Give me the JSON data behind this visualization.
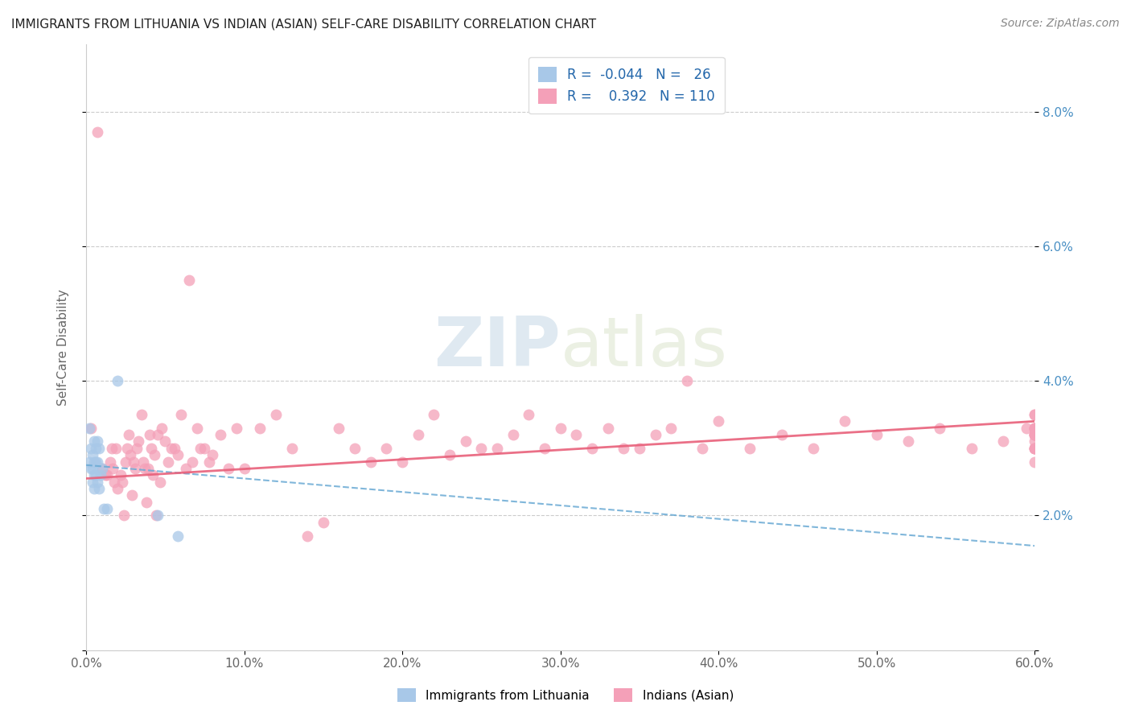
{
  "title": "IMMIGRANTS FROM LITHUANIA VS INDIAN (ASIAN) SELF-CARE DISABILITY CORRELATION CHART",
  "source": "Source: ZipAtlas.com",
  "ylabel": "Self-Care Disability",
  "x_min": 0.0,
  "x_max": 0.6,
  "y_min": 0.0,
  "y_max": 0.09,
  "x_ticks": [
    0.0,
    0.1,
    0.2,
    0.3,
    0.4,
    0.5,
    0.6
  ],
  "x_tick_labels": [
    "0.0%",
    "10.0%",
    "20.0%",
    "30.0%",
    "40.0%",
    "50.0%",
    "60.0%"
  ],
  "y_ticks": [
    0.0,
    0.02,
    0.04,
    0.06,
    0.08
  ],
  "y_tick_labels": [
    "",
    "2.0%",
    "4.0%",
    "6.0%",
    "8.0%"
  ],
  "color_blue": "#a8c8e8",
  "color_pink": "#f4a0b8",
  "color_blue_line": "#6aaad4",
  "color_pink_line": "#e8607a",
  "watermark_zip": "ZIP",
  "watermark_atlas": "atlas",
  "label1": "Immigrants from Lithuania",
  "label2": "Indians (Asian)",
  "lithuania_x": [
    0.002,
    0.002,
    0.003,
    0.003,
    0.004,
    0.004,
    0.004,
    0.005,
    0.005,
    0.005,
    0.005,
    0.006,
    0.006,
    0.006,
    0.007,
    0.007,
    0.007,
    0.008,
    0.008,
    0.009,
    0.01,
    0.011,
    0.013,
    0.02,
    0.045,
    0.058
  ],
  "lithuania_y": [
    0.028,
    0.033,
    0.03,
    0.027,
    0.029,
    0.027,
    0.025,
    0.031,
    0.028,
    0.026,
    0.024,
    0.03,
    0.028,
    0.026,
    0.031,
    0.028,
    0.025,
    0.03,
    0.024,
    0.026,
    0.027,
    0.021,
    0.021,
    0.04,
    0.02,
    0.017
  ],
  "indian_x": [
    0.003,
    0.007,
    0.01,
    0.012,
    0.013,
    0.015,
    0.016,
    0.017,
    0.018,
    0.019,
    0.02,
    0.022,
    0.023,
    0.024,
    0.025,
    0.026,
    0.027,
    0.028,
    0.029,
    0.03,
    0.031,
    0.032,
    0.033,
    0.035,
    0.036,
    0.037,
    0.038,
    0.039,
    0.04,
    0.041,
    0.042,
    0.043,
    0.044,
    0.045,
    0.047,
    0.048,
    0.05,
    0.052,
    0.054,
    0.056,
    0.058,
    0.06,
    0.063,
    0.065,
    0.067,
    0.07,
    0.072,
    0.075,
    0.078,
    0.08,
    0.085,
    0.09,
    0.095,
    0.1,
    0.11,
    0.12,
    0.13,
    0.14,
    0.15,
    0.16,
    0.17,
    0.18,
    0.19,
    0.2,
    0.21,
    0.22,
    0.23,
    0.24,
    0.25,
    0.26,
    0.27,
    0.28,
    0.29,
    0.3,
    0.31,
    0.32,
    0.33,
    0.34,
    0.35,
    0.36,
    0.37,
    0.38,
    0.39,
    0.4,
    0.42,
    0.44,
    0.46,
    0.48,
    0.5,
    0.52,
    0.54,
    0.56,
    0.58,
    0.595,
    0.6,
    0.6,
    0.6,
    0.6,
    0.6,
    0.6,
    0.6,
    0.6,
    0.6,
    0.6,
    0.6,
    0.6,
    0.6,
    0.6,
    0.6,
    0.6
  ],
  "indian_y": [
    0.033,
    0.077,
    0.027,
    0.026,
    0.026,
    0.028,
    0.03,
    0.027,
    0.025,
    0.03,
    0.024,
    0.026,
    0.025,
    0.02,
    0.028,
    0.03,
    0.032,
    0.029,
    0.023,
    0.028,
    0.027,
    0.03,
    0.031,
    0.035,
    0.028,
    0.027,
    0.022,
    0.027,
    0.032,
    0.03,
    0.026,
    0.029,
    0.02,
    0.032,
    0.025,
    0.033,
    0.031,
    0.028,
    0.03,
    0.03,
    0.029,
    0.035,
    0.027,
    0.055,
    0.028,
    0.033,
    0.03,
    0.03,
    0.028,
    0.029,
    0.032,
    0.027,
    0.033,
    0.027,
    0.033,
    0.035,
    0.03,
    0.017,
    0.019,
    0.033,
    0.03,
    0.028,
    0.03,
    0.028,
    0.032,
    0.035,
    0.029,
    0.031,
    0.03,
    0.03,
    0.032,
    0.035,
    0.03,
    0.033,
    0.032,
    0.03,
    0.033,
    0.03,
    0.03,
    0.032,
    0.033,
    0.04,
    0.03,
    0.034,
    0.03,
    0.032,
    0.03,
    0.034,
    0.032,
    0.031,
    0.033,
    0.03,
    0.031,
    0.033,
    0.035,
    0.03,
    0.032,
    0.033,
    0.03,
    0.031,
    0.035,
    0.033,
    0.03,
    0.032,
    0.028,
    0.032,
    0.033,
    0.03,
    0.033,
    0.032
  ],
  "lith_line_x": [
    0.0,
    0.6
  ],
  "lith_line_y": [
    0.0275,
    0.0155
  ],
  "ind_line_x": [
    0.0,
    0.6
  ],
  "ind_line_y": [
    0.0255,
    0.034
  ]
}
